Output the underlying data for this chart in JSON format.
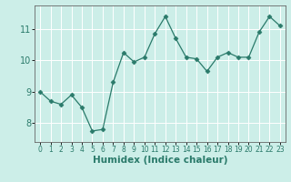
{
  "x": [
    0,
    1,
    2,
    3,
    4,
    5,
    6,
    7,
    8,
    9,
    10,
    11,
    12,
    13,
    14,
    15,
    16,
    17,
    18,
    19,
    20,
    21,
    22,
    23
  ],
  "y": [
    9.0,
    8.7,
    8.6,
    8.9,
    8.5,
    7.75,
    7.8,
    9.3,
    10.25,
    9.95,
    10.1,
    10.85,
    11.4,
    10.7,
    10.1,
    10.05,
    9.65,
    10.1,
    10.25,
    10.1,
    10.1,
    10.9,
    11.4,
    11.1
  ],
  "line_color": "#2a7a6a",
  "marker": "D",
  "marker_size": 2.5,
  "background_color": "#cceee8",
  "grid_color": "#ffffff",
  "xlabel": "Humidex (Indice chaleur)",
  "ylim": [
    7.4,
    11.75
  ],
  "xlim": [
    -0.5,
    23.5
  ],
  "yticks": [
    8,
    9,
    10,
    11
  ],
  "xticks": [
    0,
    1,
    2,
    3,
    4,
    5,
    6,
    7,
    8,
    9,
    10,
    11,
    12,
    13,
    14,
    15,
    16,
    17,
    18,
    19,
    20,
    21,
    22,
    23
  ],
  "xlabel_fontsize": 7.5,
  "tick_fontsize": 7,
  "xtick_fontsize": 5.5
}
